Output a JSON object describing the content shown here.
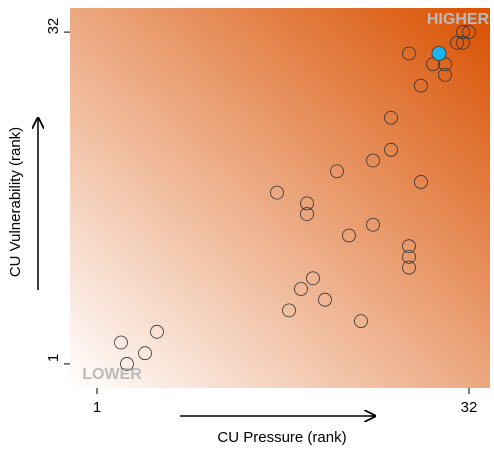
{
  "chart_data": {
    "type": "scatter",
    "xlabel": "CU Pressure (rank)",
    "ylabel": "CU Vulnerability (rank)",
    "annotations": [
      "HIGHER",
      "LOWER"
    ],
    "xlim": [
      -1.25,
      33.75
    ],
    "ylim": [
      -1.25,
      34.25
    ],
    "xticks": [
      1,
      32
    ],
    "yticks": [
      1,
      32
    ],
    "gradient": [
      "#ffffff",
      "#d95000"
    ],
    "series": [
      {
        "color": "none",
        "edge": "#333333",
        "x": [
          3,
          3.5,
          5,
          6,
          16,
          18.5,
          18.5,
          21,
          22,
          24,
          24,
          25.5,
          25.5,
          27,
          27,
          27,
          27,
          28,
          28,
          29,
          30,
          30,
          31,
          31.5,
          32,
          31.5,
          17,
          18,
          19,
          20,
          23
        ],
        "y": [
          3,
          1,
          2,
          4,
          17,
          16,
          15,
          19,
          13,
          20,
          14,
          24,
          21,
          30,
          12,
          11,
          10,
          27,
          18,
          29,
          29,
          28,
          31,
          32,
          32,
          31,
          6,
          8,
          9,
          7,
          5
        ]
      },
      {
        "color": "#1eb4f0",
        "edge": "#333333",
        "x": [
          29.5
        ],
        "y": [
          30
        ]
      }
    ]
  }
}
